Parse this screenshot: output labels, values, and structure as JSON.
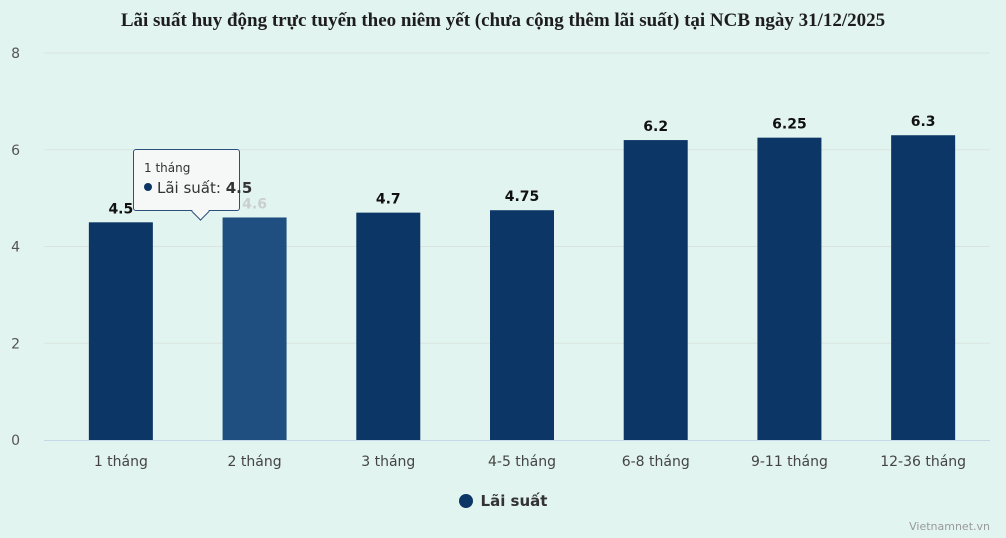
{
  "chart_data": {
    "type": "bar",
    "title": "Lãi suất huy động trực tuyến theo niêm yết (chưa cộng thêm lãi suất) tại NCB ngày 31/12/2025",
    "categories": [
      "1 tháng",
      "2 tháng",
      "3 tháng",
      "4-5 tháng",
      "6-8 tháng",
      "9-11 tháng",
      "12-36 tháng"
    ],
    "series": [
      {
        "name": "Lãi suất",
        "values": [
          4.5,
          4.6,
          4.7,
          4.75,
          6.2,
          6.25,
          6.3
        ],
        "color": "#0b3666",
        "hover_color": "#1f4f80"
      }
    ],
    "data_labels": [
      "4.5",
      "4.6",
      "4.7",
      "4.75",
      "6.2",
      "6.25",
      "6.3"
    ],
    "yticks": [
      0,
      2,
      4,
      6,
      8
    ],
    "ylim": [
      0,
      8
    ],
    "grid": true,
    "legend": "bottom-center",
    "xlabel": "",
    "ylabel": ""
  },
  "tooltip": {
    "header": "1 tháng",
    "series_label": "Lãi suất: ",
    "value": "4.5"
  },
  "credit": "Vietnamnet.vn"
}
